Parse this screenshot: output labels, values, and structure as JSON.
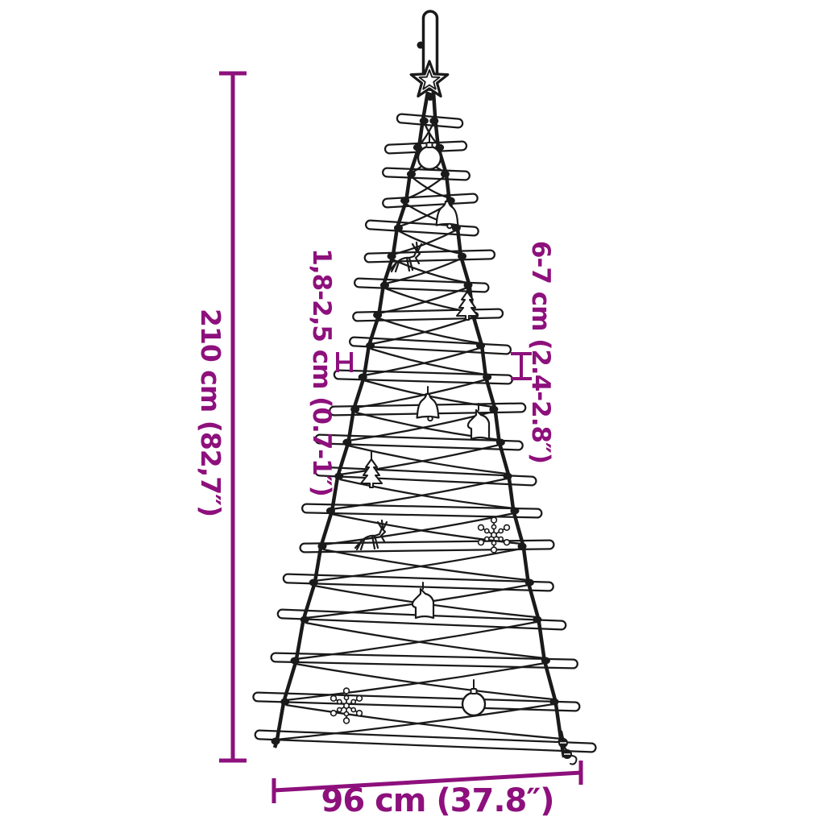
{
  "figure": {
    "kind": "product dimension diagram",
    "subject": "wall-mounted branch christmas tree with ornaments",
    "background_color": "#ffffff",
    "drawing_color": "#1a1a1a",
    "dimension_color": "#8d107c",
    "stick_count": 20
  },
  "dimensions": {
    "height_label": "210 cm (82,7″)",
    "width_label": "96 cm (37.8″)",
    "branch_thickness_label": "1,8-2,5 cm (0.7-1″)",
    "branch_spacing_label": "6-7 cm (2.4-2.8″)"
  },
  "ornaments": [
    "hanging-hook",
    "star-topper",
    "bauble",
    "bell",
    "reindeer",
    "fir-tree",
    "bell",
    "horse",
    "fir-tree",
    "reindeer",
    "snowflake",
    "horse",
    "snowflake",
    "bauble",
    "jingle-bells"
  ]
}
